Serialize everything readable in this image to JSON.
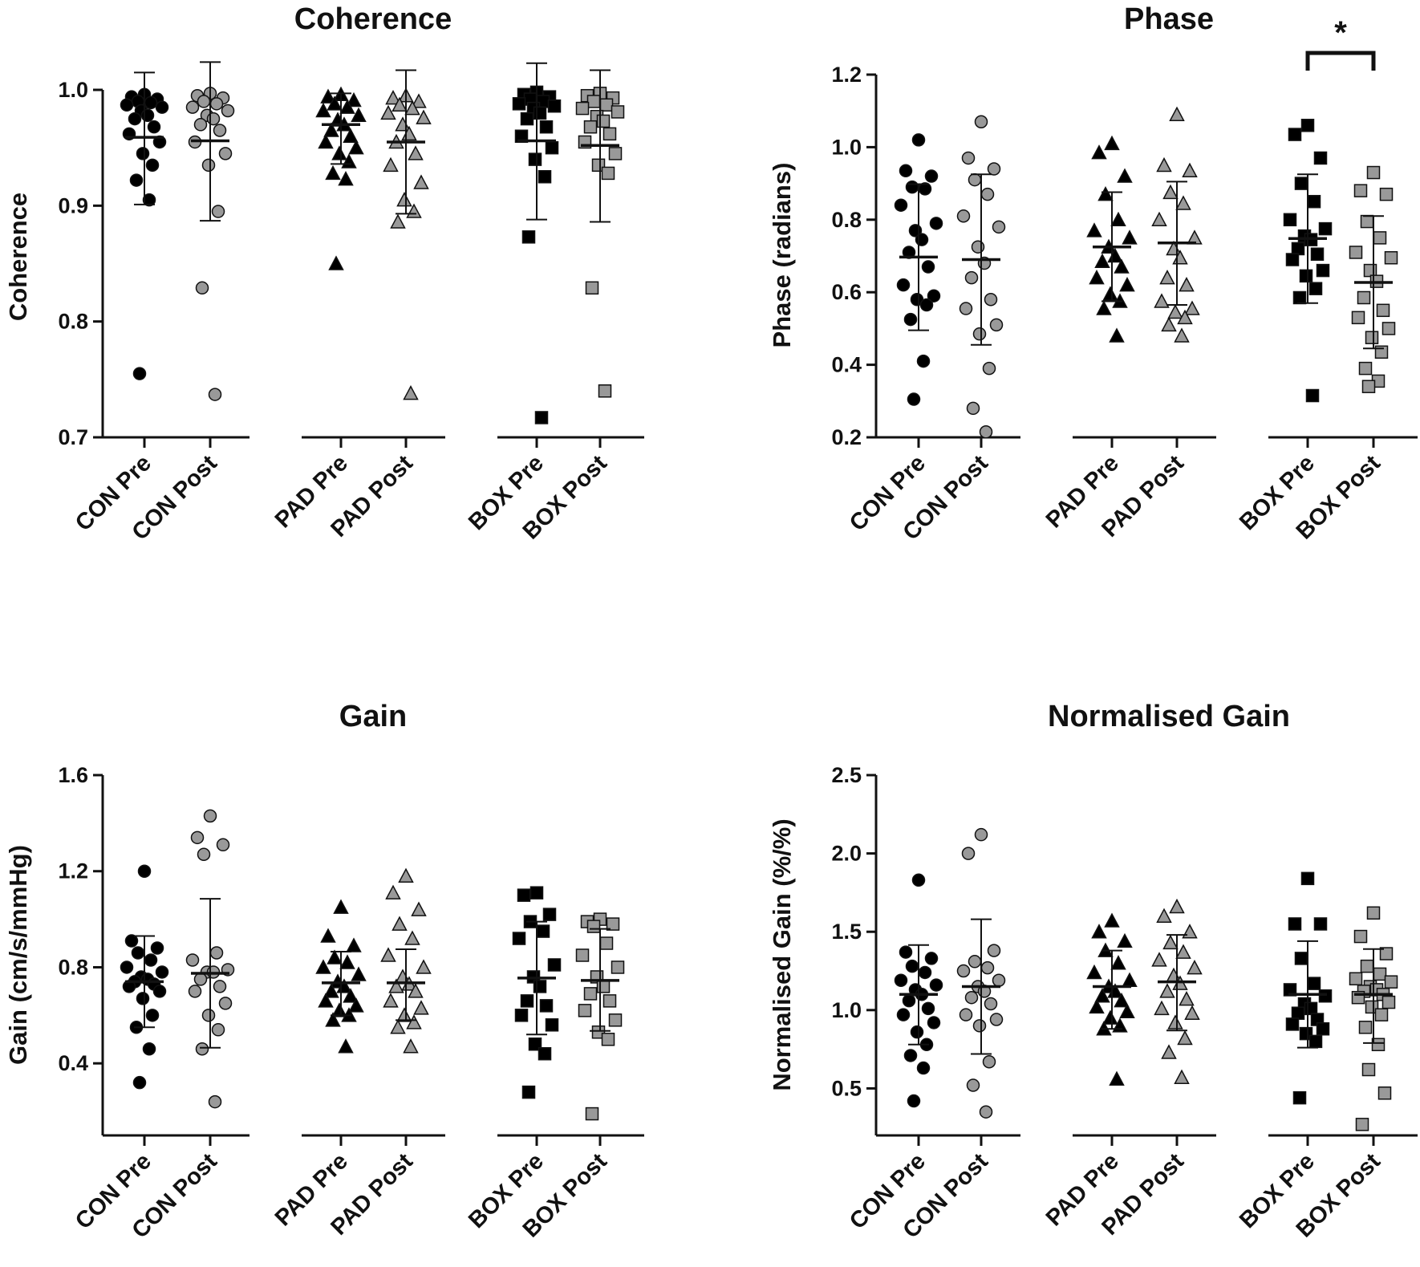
{
  "chart_data": [
    {
      "type": "scatter",
      "title": "Coherence",
      "ylabel": "Coherence",
      "ylim": [
        0.7,
        1.0
      ],
      "yticks": [
        "0.7",
        "0.8",
        "0.9",
        "1.0"
      ],
      "categories": [
        "CON Pre",
        "CON Post",
        "PAD Pre",
        "PAD Post",
        "BOX Pre",
        "BOX Post"
      ],
      "series": [
        {
          "name": "CON Pre",
          "marker": "circle",
          "fill": "#000000",
          "mean": 0.959,
          "sd_low": 0.901,
          "sd_high": 1.015,
          "points": [
            0.996,
            0.994,
            0.992,
            0.99,
            0.989,
            0.987,
            0.985,
            0.982,
            0.978,
            0.975,
            0.968,
            0.962,
            0.955,
            0.945,
            0.935,
            0.922,
            0.905,
            0.755
          ]
        },
        {
          "name": "CON Post",
          "marker": "circle",
          "fill": "#999999",
          "mean": 0.956,
          "sd_low": 0.887,
          "sd_high": 1.024,
          "points": [
            0.997,
            0.995,
            0.993,
            0.99,
            0.988,
            0.985,
            0.982,
            0.978,
            0.975,
            0.97,
            0.965,
            0.955,
            0.945,
            0.935,
            0.895,
            0.829,
            0.737
          ]
        },
        {
          "name": "PAD Pre",
          "marker": "triangle",
          "fill": "#000000",
          "mean": 0.97,
          "sd_low": 0.936,
          "sd_high": 0.997,
          "points": [
            0.996,
            0.994,
            0.991,
            0.988,
            0.985,
            0.982,
            0.978,
            0.974,
            0.97,
            0.965,
            0.96,
            0.955,
            0.95,
            0.945,
            0.938,
            0.928,
            0.923,
            0.85
          ]
        },
        {
          "name": "PAD Post",
          "marker": "triangle",
          "fill": "#999999",
          "mean": 0.955,
          "sd_low": 0.893,
          "sd_high": 1.017,
          "points": [
            0.995,
            0.993,
            0.99,
            0.987,
            0.984,
            0.98,
            0.976,
            0.97,
            0.962,
            0.955,
            0.945,
            0.935,
            0.92,
            0.905,
            0.895,
            0.886,
            0.738
          ]
        },
        {
          "name": "BOX Pre",
          "marker": "square",
          "fill": "#000000",
          "mean": 0.956,
          "sd_low": 0.888,
          "sd_high": 1.023,
          "points": [
            0.998,
            0.996,
            0.994,
            0.992,
            0.99,
            0.988,
            0.986,
            0.984,
            0.98,
            0.975,
            0.968,
            0.96,
            0.95,
            0.94,
            0.925,
            0.873,
            0.717
          ]
        },
        {
          "name": "BOX Post",
          "marker": "square",
          "fill": "#999999",
          "mean": 0.952,
          "sd_low": 0.886,
          "sd_high": 1.017,
          "points": [
            0.997,
            0.995,
            0.993,
            0.99,
            0.987,
            0.984,
            0.981,
            0.977,
            0.973,
            0.968,
            0.962,
            0.955,
            0.945,
            0.935,
            0.928,
            0.829,
            0.74
          ]
        }
      ]
    },
    {
      "type": "scatter",
      "title": "Phase",
      "ylabel": "Phase (radians)",
      "ylim": [
        0.2,
        1.2
      ],
      "yticks": [
        "0.2",
        "0.4",
        "0.6",
        "0.8",
        "1.0",
        "1.2"
      ],
      "categories": [
        "CON Pre",
        "CON Post",
        "PAD Pre",
        "PAD Post",
        "BOX Pre",
        "BOX Post"
      ],
      "significance": {
        "from": "BOX Pre",
        "to": "BOX Post",
        "label": "*"
      },
      "series": [
        {
          "name": "CON Pre",
          "marker": "circle",
          "fill": "#000000",
          "mean": 0.697,
          "sd_low": 0.495,
          "sd_high": 0.898,
          "points": [
            1.02,
            0.935,
            0.92,
            0.89,
            0.885,
            0.84,
            0.79,
            0.77,
            0.745,
            0.71,
            0.67,
            0.62,
            0.59,
            0.58,
            0.565,
            0.525,
            0.41,
            0.305
          ]
        },
        {
          "name": "CON Post",
          "marker": "circle",
          "fill": "#999999",
          "mean": 0.69,
          "sd_low": 0.455,
          "sd_high": 0.925,
          "points": [
            1.07,
            0.97,
            0.94,
            0.91,
            0.87,
            0.81,
            0.78,
            0.725,
            0.68,
            0.64,
            0.58,
            0.555,
            0.51,
            0.485,
            0.39,
            0.28,
            0.215
          ]
        },
        {
          "name": "PAD Pre",
          "marker": "triangle",
          "fill": "#000000",
          "mean": 0.725,
          "sd_low": 0.575,
          "sd_high": 0.876,
          "points": [
            1.01,
            0.985,
            0.92,
            0.87,
            0.8,
            0.77,
            0.75,
            0.725,
            0.7,
            0.685,
            0.67,
            0.64,
            0.62,
            0.595,
            0.575,
            0.555,
            0.48
          ]
        },
        {
          "name": "PAD Post",
          "marker": "triangle",
          "fill": "#999999",
          "mean": 0.736,
          "sd_low": 0.565,
          "sd_high": 0.905,
          "points": [
            1.09,
            0.95,
            0.935,
            0.875,
            0.845,
            0.8,
            0.75,
            0.72,
            0.695,
            0.64,
            0.62,
            0.575,
            0.555,
            0.545,
            0.53,
            0.51,
            0.48
          ]
        },
        {
          "name": "BOX Pre",
          "marker": "square",
          "fill": "#000000",
          "mean": 0.748,
          "sd_low": 0.57,
          "sd_high": 0.925,
          "points": [
            1.06,
            1.035,
            0.97,
            0.9,
            0.85,
            0.8,
            0.775,
            0.755,
            0.745,
            0.72,
            0.705,
            0.69,
            0.66,
            0.645,
            0.61,
            0.585,
            0.315
          ]
        },
        {
          "name": "BOX Post",
          "marker": "square",
          "fill": "#999999",
          "mean": 0.627,
          "sd_low": 0.445,
          "sd_high": 0.81,
          "points": [
            0.93,
            0.88,
            0.87,
            0.795,
            0.75,
            0.71,
            0.695,
            0.66,
            0.63,
            0.585,
            0.55,
            0.53,
            0.5,
            0.475,
            0.435,
            0.39,
            0.355,
            0.34
          ]
        }
      ]
    },
    {
      "type": "scatter",
      "title": "Gain",
      "ylabel": "Gain (cm/s/mmHg)",
      "ylim": [
        0.1,
        1.6
      ],
      "yticks": [
        "0.4",
        "0.8",
        "1.2",
        "1.6"
      ],
      "categories": [
        "CON Pre",
        "CON Post",
        "PAD Pre",
        "PAD Post",
        "BOX Pre",
        "BOX Post"
      ],
      "series": [
        {
          "name": "CON Pre",
          "marker": "circle",
          "fill": "#000000",
          "mean": 0.74,
          "sd_low": 0.55,
          "sd_high": 0.93,
          "points": [
            1.2,
            0.91,
            0.88,
            0.86,
            0.83,
            0.8,
            0.78,
            0.76,
            0.75,
            0.74,
            0.73,
            0.72,
            0.7,
            0.67,
            0.6,
            0.55,
            0.46,
            0.32
          ]
        },
        {
          "name": "CON Post",
          "marker": "circle",
          "fill": "#999999",
          "mean": 0.775,
          "sd_low": 0.465,
          "sd_high": 1.085,
          "points": [
            1.43,
            1.34,
            1.31,
            1.27,
            0.86,
            0.83,
            0.79,
            0.78,
            0.78,
            0.75,
            0.72,
            0.7,
            0.65,
            0.6,
            0.54,
            0.46,
            0.24
          ]
        },
        {
          "name": "PAD Pre",
          "marker": "triangle",
          "fill": "#000000",
          "mean": 0.735,
          "sd_low": 0.6,
          "sd_high": 0.865,
          "points": [
            1.05,
            0.93,
            0.89,
            0.84,
            0.82,
            0.8,
            0.77,
            0.74,
            0.72,
            0.7,
            0.68,
            0.66,
            0.64,
            0.62,
            0.6,
            0.58,
            0.47
          ]
        },
        {
          "name": "PAD Post",
          "marker": "triangle",
          "fill": "#999999",
          "mean": 0.735,
          "sd_low": 0.58,
          "sd_high": 0.875,
          "points": [
            1.18,
            1.11,
            1.04,
            0.98,
            0.92,
            0.85,
            0.8,
            0.76,
            0.73,
            0.72,
            0.7,
            0.66,
            0.63,
            0.6,
            0.57,
            0.55,
            0.47
          ]
        },
        {
          "name": "BOX Pre",
          "marker": "square",
          "fill": "#000000",
          "mean": 0.755,
          "sd_low": 0.52,
          "sd_high": 0.99,
          "points": [
            1.11,
            1.1,
            1.02,
            0.99,
            0.95,
            0.92,
            0.81,
            0.76,
            0.72,
            0.66,
            0.64,
            0.6,
            0.56,
            0.48,
            0.44,
            0.28
          ]
        },
        {
          "name": "BOX Post",
          "marker": "square",
          "fill": "#999999",
          "mean": 0.745,
          "sd_low": 0.535,
          "sd_high": 0.96,
          "points": [
            1.0,
            0.99,
            0.98,
            0.97,
            0.9,
            0.85,
            0.8,
            0.76,
            0.72,
            0.69,
            0.66,
            0.62,
            0.58,
            0.53,
            0.5,
            0.19
          ]
        }
      ]
    },
    {
      "type": "scatter",
      "title": "Normalised Gain",
      "ylabel": "Normalised Gain (%/%)",
      "ylim": [
        0.2,
        2.5
      ],
      "yticks": [
        "0.5",
        "1.0",
        "1.5",
        "2.0",
        "2.5"
      ],
      "categories": [
        "CON Pre",
        "CON Post",
        "PAD Pre",
        "PAD Post",
        "BOX Pre",
        "BOX Post"
      ],
      "series": [
        {
          "name": "CON Pre",
          "marker": "circle",
          "fill": "#000000",
          "mean": 1.1,
          "sd_low": 0.78,
          "sd_high": 1.415,
          "points": [
            1.83,
            1.37,
            1.33,
            1.28,
            1.24,
            1.19,
            1.16,
            1.13,
            1.1,
            1.06,
            1.01,
            0.97,
            0.92,
            0.86,
            0.78,
            0.71,
            0.63,
            0.42
          ]
        },
        {
          "name": "CON Post",
          "marker": "circle",
          "fill": "#999999",
          "mean": 1.15,
          "sd_low": 0.72,
          "sd_high": 1.58,
          "points": [
            2.12,
            2.0,
            1.38,
            1.31,
            1.27,
            1.25,
            1.19,
            1.15,
            1.12,
            1.08,
            1.04,
            0.97,
            0.94,
            0.9,
            0.67,
            0.52,
            0.35
          ]
        },
        {
          "name": "PAD Pre",
          "marker": "triangle",
          "fill": "#000000",
          "mean": 1.15,
          "sd_low": 0.88,
          "sd_high": 1.38,
          "points": [
            1.57,
            1.5,
            1.44,
            1.38,
            1.3,
            1.24,
            1.19,
            1.15,
            1.12,
            1.09,
            1.06,
            1.02,
            0.99,
            0.95,
            0.9,
            0.88,
            0.56
          ]
        },
        {
          "name": "PAD Post",
          "marker": "triangle",
          "fill": "#999999",
          "mean": 1.18,
          "sd_low": 0.87,
          "sd_high": 1.48,
          "points": [
            1.66,
            1.6,
            1.5,
            1.43,
            1.37,
            1.32,
            1.27,
            1.22,
            1.17,
            1.12,
            1.07,
            1.01,
            0.98,
            0.92,
            0.82,
            0.73,
            0.57
          ]
        },
        {
          "name": "BOX Pre",
          "marker": "square",
          "fill": "#000000",
          "mean": 1.1,
          "sd_low": 0.76,
          "sd_high": 1.44,
          "points": [
            1.84,
            1.55,
            1.55,
            1.33,
            1.17,
            1.13,
            1.09,
            1.04,
            1.01,
            0.98,
            0.94,
            0.91,
            0.88,
            0.85,
            0.8,
            0.44
          ]
        },
        {
          "name": "BOX Post",
          "marker": "square",
          "fill": "#999999",
          "mean": 1.1,
          "sd_low": 0.79,
          "sd_high": 1.39,
          "points": [
            1.62,
            1.47,
            1.36,
            1.28,
            1.23,
            1.2,
            1.18,
            1.15,
            1.13,
            1.12,
            1.1,
            1.08,
            1.05,
            1.02,
            0.97,
            0.89,
            0.78,
            0.62,
            0.47,
            0.27
          ]
        }
      ]
    }
  ]
}
